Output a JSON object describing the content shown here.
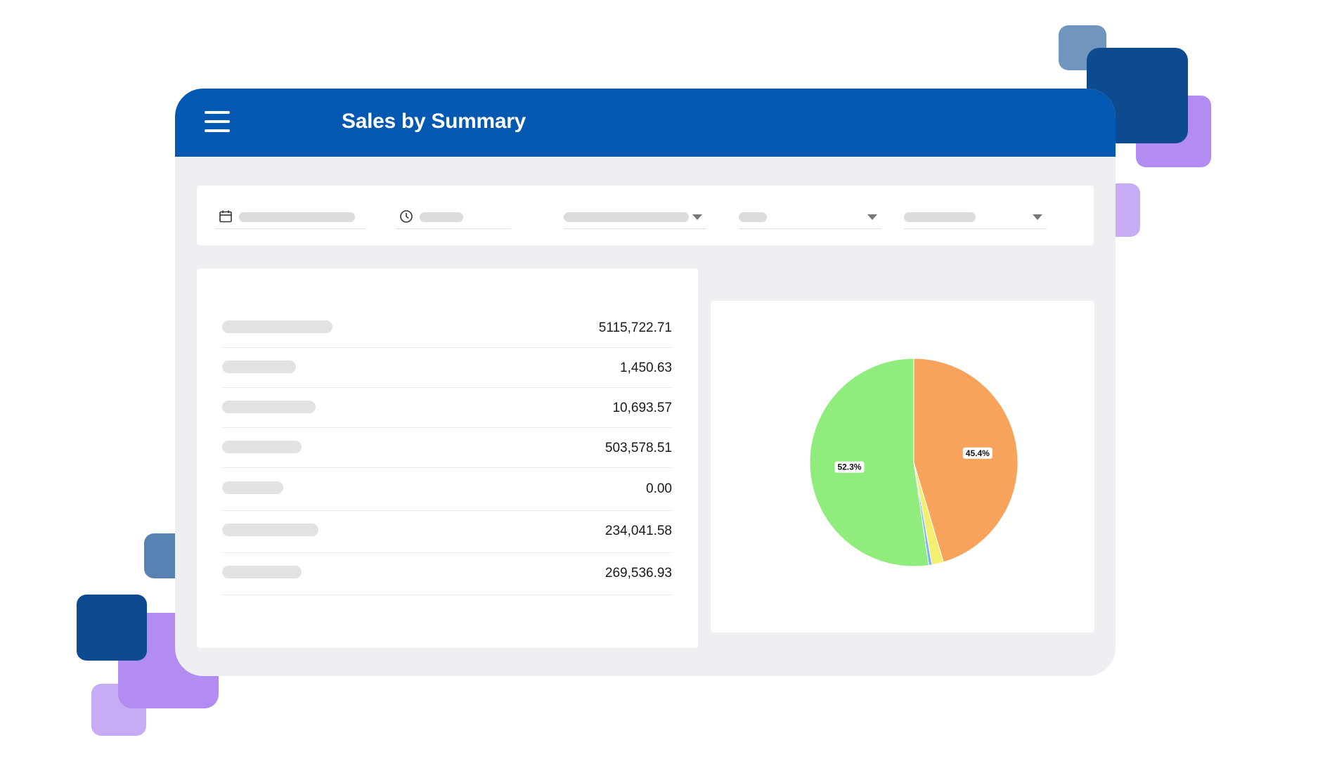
{
  "header": {
    "title": "Sales by Summary"
  },
  "summary": {
    "rows": [
      {
        "value": "5115,722.71"
      },
      {
        "value": "1,450.63"
      },
      {
        "value": "10,693.57"
      },
      {
        "value": "503,578.51"
      },
      {
        "value": "0.00"
      },
      {
        "value": "234,041.58"
      },
      {
        "value": "269,536.93"
      }
    ]
  },
  "chart_data": {
    "type": "pie",
    "slices": [
      {
        "value": 45.4,
        "color": "#f7a35c",
        "label": "45.4%"
      },
      {
        "value": 1.8,
        "color": "#f2f06e",
        "label": ""
      },
      {
        "value": 0.5,
        "color": "#7cb5ec",
        "label": ""
      },
      {
        "value": 52.3,
        "color": "#90ed7d",
        "label": "52.3%"
      }
    ]
  },
  "colors": {
    "header": "#0359b1",
    "background": "#eeeff2",
    "accent_purple": "#b28cf0",
    "accent_navy": "#0e4a8f"
  }
}
